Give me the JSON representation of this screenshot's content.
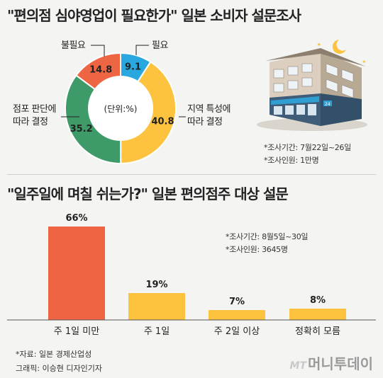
{
  "survey1": {
    "title": "\"편의점 심야영업이 필요한가\" 일본 소비자 설문조사",
    "unit_label": "(단위:%)",
    "note_period": "*조사기간: 7월22일~26일",
    "note_people": "*조사인원: 1만명"
  },
  "survey2": {
    "title": "\"일주일에 며칠 쉬는가?\" 일본 편의점주 대상 설문",
    "note_period": "*조사기간: 8월5일~30일",
    "note_people": "*조사인원: 3645명"
  },
  "footer": {
    "source": "*자료: 일본 경제산업성",
    "credit": "그래픽: 이승현 디자인기자"
  },
  "brand": {
    "prefix": "MT",
    "name": "머니투데이"
  },
  "colors": {
    "red": "#ee6543",
    "blue": "#29a8e0",
    "yellow": "#fdc33e",
    "green": "#3e9b69"
  },
  "chart_data": [
    {
      "type": "pie",
      "style": "donut",
      "unit": "%",
      "slices": [
        {
          "label": "필요",
          "value": 9.1,
          "color": "#29a8e0"
        },
        {
          "label": "지역 특성에\n따라 결정",
          "value": 40.8,
          "color": "#fdc33e"
        },
        {
          "label": "점포 판단에\n따라 결정",
          "value": 35.2,
          "color": "#3e9b69"
        },
        {
          "label": "불필요",
          "value": 14.8,
          "color": "#ee6543"
        }
      ]
    },
    {
      "type": "bar",
      "categories": [
        "주 1일 미만",
        "주 1일",
        "주 2일 이상",
        "정확히 모름"
      ],
      "values": [
        66,
        19,
        7,
        8
      ],
      "value_labels": [
        "66%",
        "19%",
        "7%",
        "8%"
      ],
      "colors": [
        "#ee6543",
        "#fdc33e",
        "#fdc33e",
        "#fdc33e"
      ],
      "grid": false
    }
  ]
}
